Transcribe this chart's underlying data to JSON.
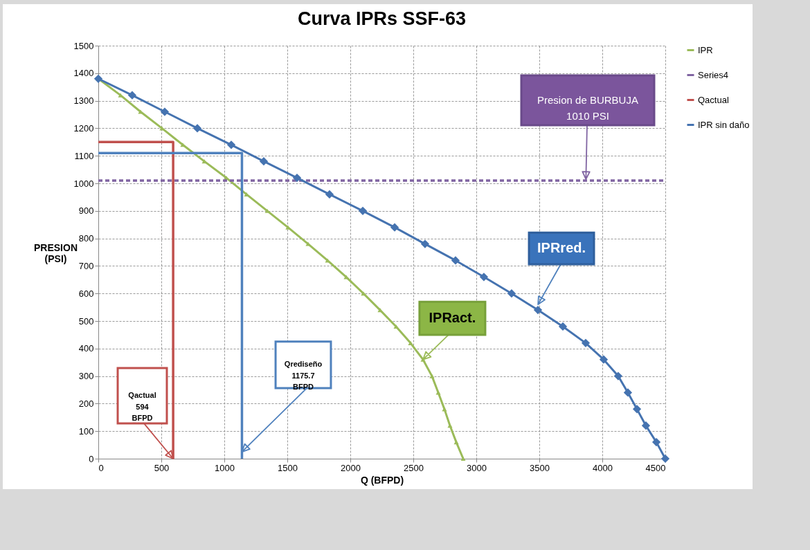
{
  "chart_data": {
    "type": "line",
    "title": "Curva IPRs  SSF-63",
    "xlabel": "Q (BFPD)",
    "ylabel": "PRESION (PSI)",
    "xlim": [
      0,
      4500
    ],
    "xticks": [
      0,
      500,
      1000,
      1500,
      2000,
      2500,
      3000,
      3500,
      4000,
      4500
    ],
    "ylim": [
      0,
      1500
    ],
    "yticks": [
      0,
      100,
      200,
      300,
      400,
      500,
      600,
      700,
      800,
      900,
      1000,
      1100,
      1200,
      1300,
      1400,
      1500
    ],
    "grid": true,
    "legend": "right",
    "series": [
      {
        "name": "IPR",
        "color": "#9bbb59",
        "marker": "triangle",
        "line_style": "solid",
        "x": [
          0,
          176,
          335,
          505,
          670,
          841,
          1016,
          1176,
          1341,
          1505,
          1665,
          1819,
          1967,
          2104,
          2236,
          2363,
          2478,
          2577,
          2648,
          2698,
          2747,
          2791,
          2841,
          2896
        ],
        "values": [
          1380,
          1320,
          1260,
          1200,
          1140,
          1080,
          1020,
          960,
          900,
          840,
          780,
          720,
          660,
          600,
          540,
          480,
          420,
          360,
          300,
          240,
          180,
          120,
          60,
          0
        ]
      },
      {
        "name": "Series4",
        "color": "#8064a2",
        "marker": "none",
        "line_style": "dashed",
        "x": [
          0,
          4500
        ],
        "values": [
          1010,
          1010
        ]
      },
      {
        "name": "Qactual",
        "color": "#c0504d",
        "marker": "none",
        "line_style": "solid",
        "x": [
          0,
          594,
          594
        ],
        "values": [
          1150,
          1150,
          0
        ]
      },
      {
        "name": "IPR sin daño",
        "color": "#4573b0",
        "marker": "diamond",
        "line_style": "solid",
        "x": [
          0,
          269,
          527,
          786,
          1055,
          1313,
          1577,
          1835,
          2099,
          2352,
          2593,
          2835,
          3060,
          3280,
          3489,
          3687,
          3868,
          4011,
          4126,
          4203,
          4275,
          4346,
          4429,
          4500
        ],
        "values": [
          1380,
          1320,
          1260,
          1200,
          1140,
          1080,
          1020,
          960,
          900,
          840,
          780,
          720,
          660,
          600,
          540,
          480,
          420,
          360,
          300,
          240,
          180,
          120,
          60,
          0
        ]
      },
      {
        "color": "#4f81bd",
        "marker": "none",
        "line_style": "solid",
        "x": [
          0,
          1140,
          1140
        ],
        "values": [
          1110,
          1110,
          0
        ]
      }
    ],
    "annotations": [
      {
        "text": "Presion de  BURBUJA\n1010 PSI",
        "x": 3870,
        "y": 1015
      },
      {
        "text": "IPRred.",
        "x": 3490,
        "y": 560
      },
      {
        "text": "IPRact.",
        "x": 2577,
        "y": 360
      },
      {
        "text": "Qactual\n594\nBFPD",
        "x": 594,
        "y": 0
      },
      {
        "text": "Qrediseño\n1175.7\nBFPD",
        "x": 1140,
        "y": 25
      }
    ]
  }
}
